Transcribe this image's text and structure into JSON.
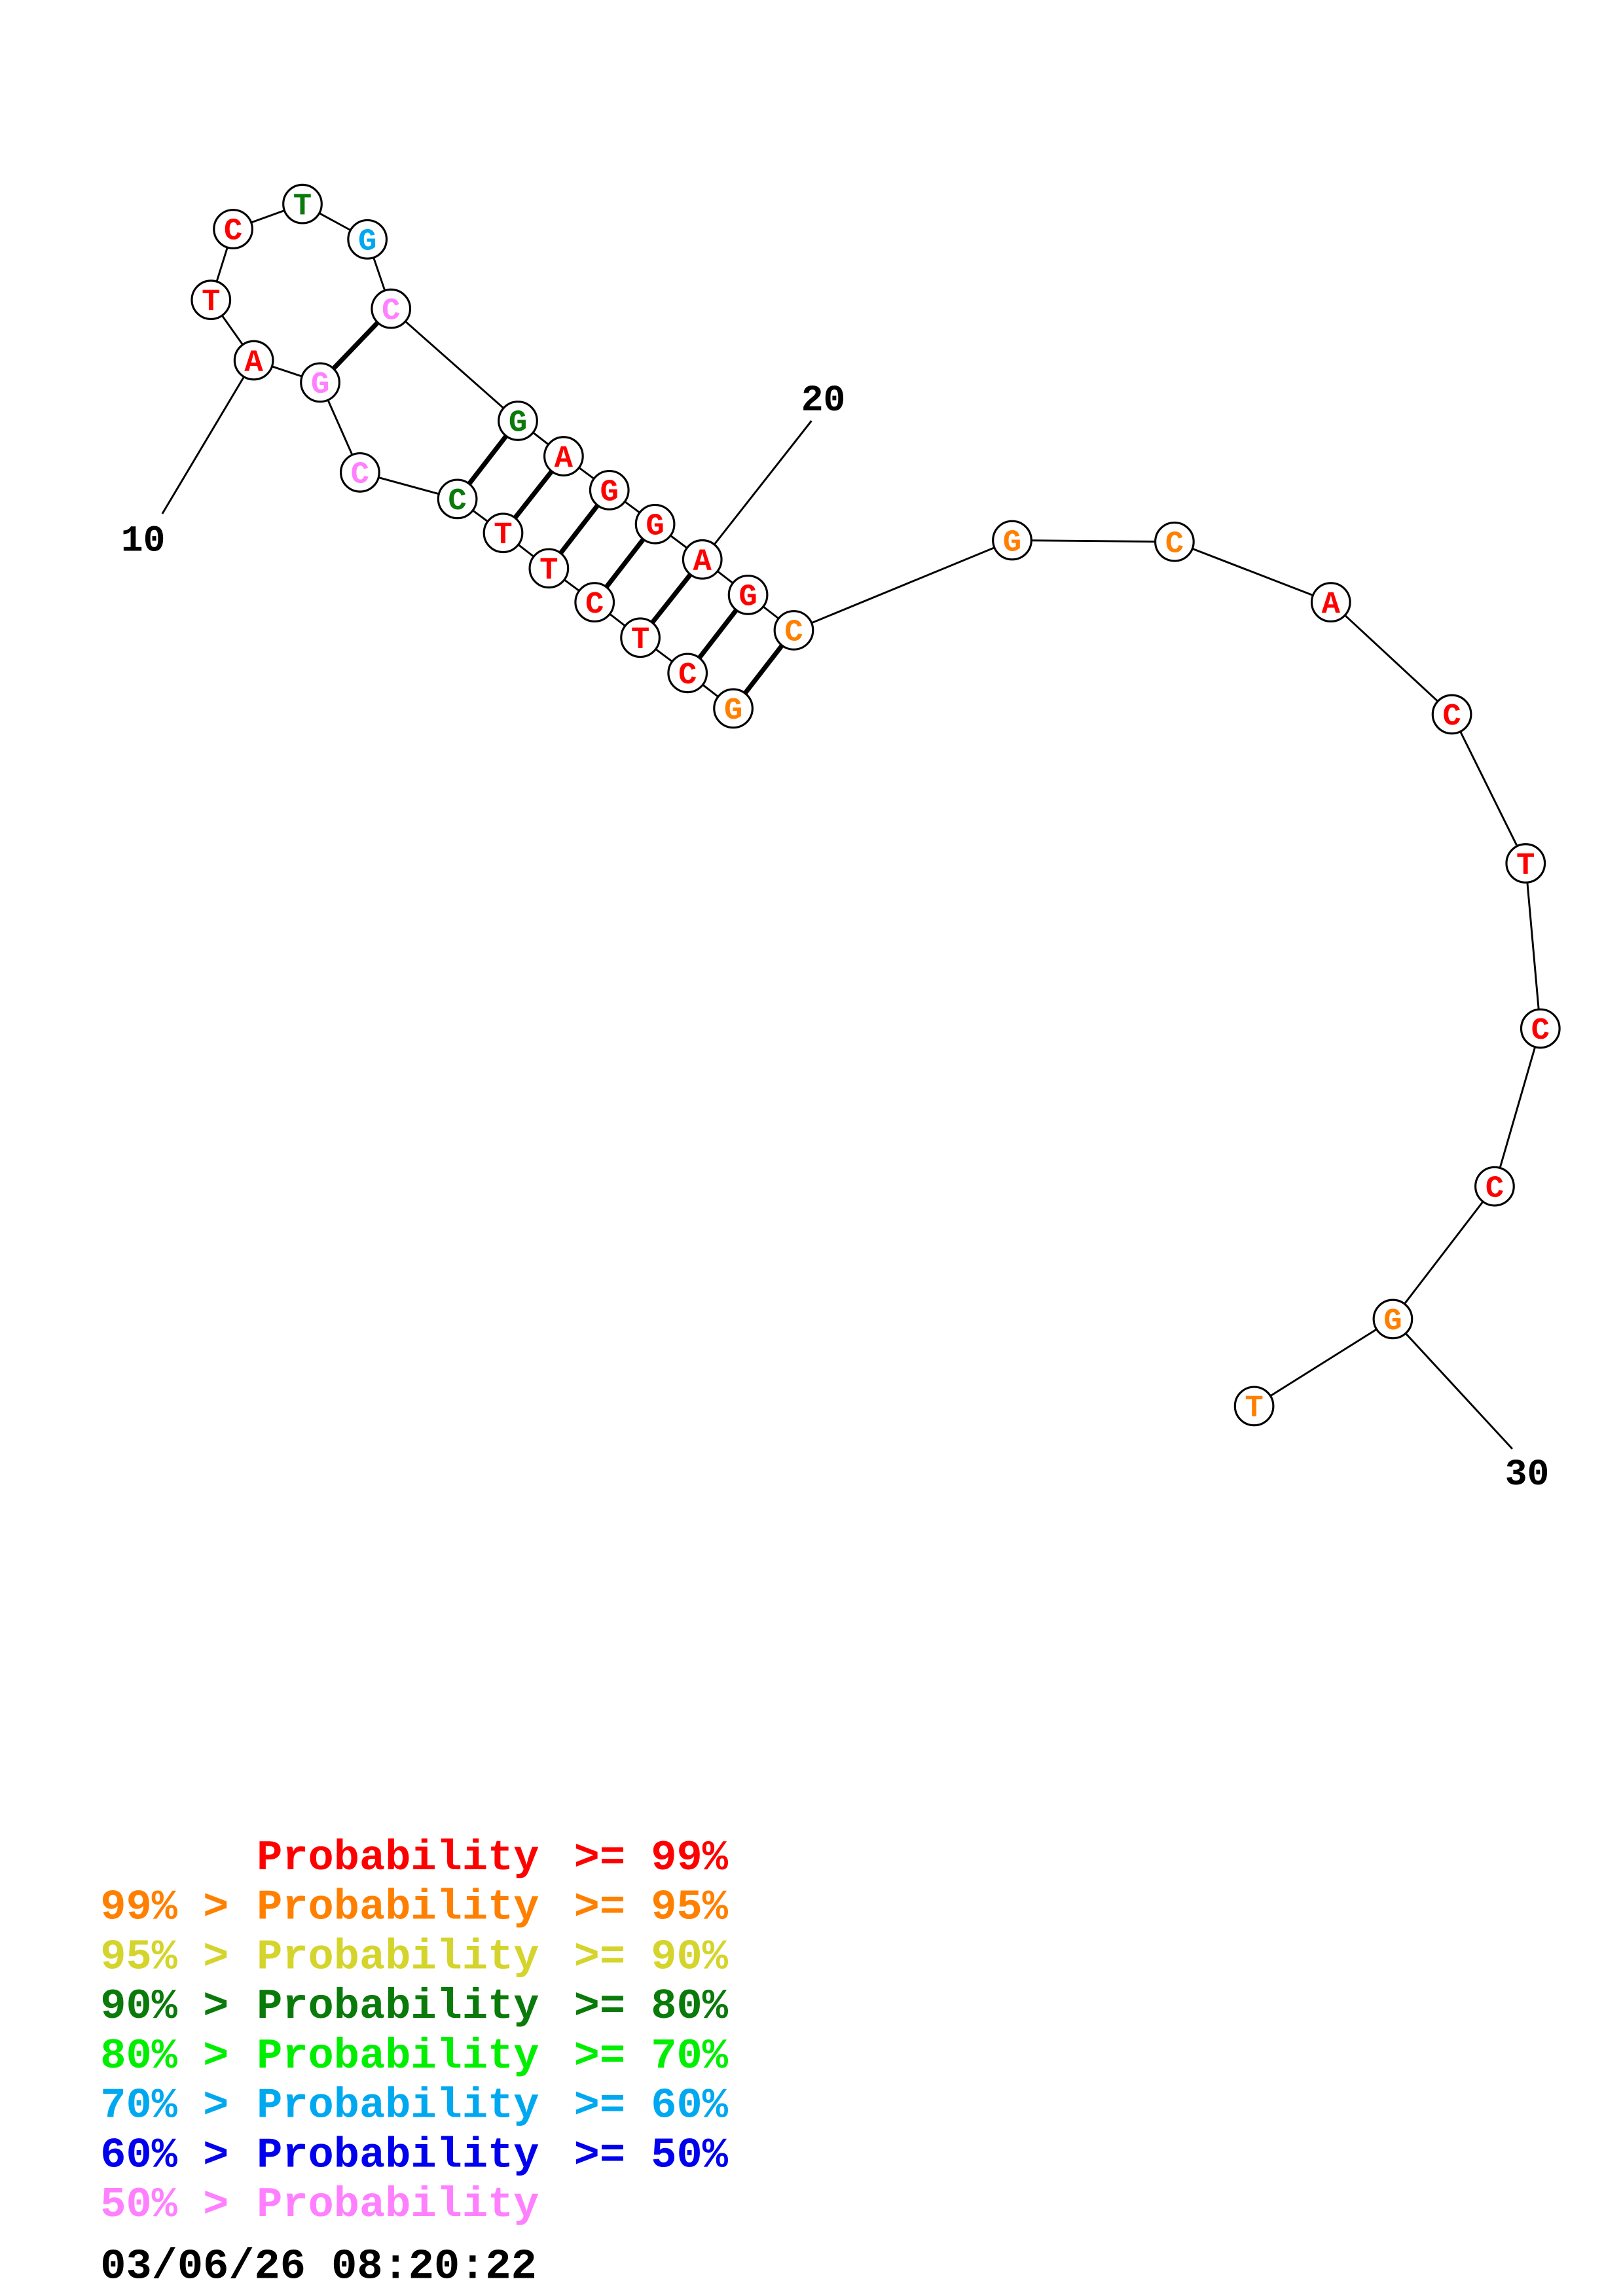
{
  "colors": {
    "p99": "#ff0000",
    "p95": "#ff8000",
    "p90": "#d4d42c",
    "p80": "#0a7a0a",
    "p70": "#00ee00",
    "p60": "#00a8f0",
    "p50": "#0000ee",
    "plow": "#ff80ff"
  },
  "structure": {
    "nucleotides": [
      {
        "n": 1,
        "base": "G",
        "prob": "p95"
      },
      {
        "n": 2,
        "base": "C",
        "prob": "p99"
      },
      {
        "n": 3,
        "base": "T",
        "prob": "p99"
      },
      {
        "n": 4,
        "base": "C",
        "prob": "p99"
      },
      {
        "n": 5,
        "base": "T",
        "prob": "p99"
      },
      {
        "n": 6,
        "base": "T",
        "prob": "p99"
      },
      {
        "n": 7,
        "base": "C",
        "prob": "p80"
      },
      {
        "n": 8,
        "base": "C",
        "prob": "plow"
      },
      {
        "n": 9,
        "base": "G",
        "prob": "plow"
      },
      {
        "n": 10,
        "base": "A",
        "prob": "p99"
      },
      {
        "n": 11,
        "base": "T",
        "prob": "p99"
      },
      {
        "n": 12,
        "base": "C",
        "prob": "p99"
      },
      {
        "n": 13,
        "base": "T",
        "prob": "p80"
      },
      {
        "n": 14,
        "base": "G",
        "prob": "p60"
      },
      {
        "n": 15,
        "base": "C",
        "prob": "plow"
      },
      {
        "n": 16,
        "base": "G",
        "prob": "p80"
      },
      {
        "n": 17,
        "base": "A",
        "prob": "p99"
      },
      {
        "n": 18,
        "base": "G",
        "prob": "p99"
      },
      {
        "n": 19,
        "base": "G",
        "prob": "p99"
      },
      {
        "n": 20,
        "base": "A",
        "prob": "p99"
      },
      {
        "n": 21,
        "base": "G",
        "prob": "p99"
      },
      {
        "n": 22,
        "base": "C",
        "prob": "p95"
      },
      {
        "n": 23,
        "base": "G",
        "prob": "p95"
      },
      {
        "n": 24,
        "base": "C",
        "prob": "p95"
      },
      {
        "n": 25,
        "base": "A",
        "prob": "p99"
      },
      {
        "n": 26,
        "base": "C",
        "prob": "p99"
      },
      {
        "n": 27,
        "base": "T",
        "prob": "p99"
      },
      {
        "n": 28,
        "base": "C",
        "prob": "p99"
      },
      {
        "n": 29,
        "base": "C",
        "prob": "p99"
      },
      {
        "n": 30,
        "base": "G",
        "prob": "p95"
      },
      {
        "n": 31,
        "base": "T",
        "prob": "p95"
      }
    ],
    "pairs": [
      [
        1,
        22
      ],
      [
        2,
        21
      ],
      [
        3,
        20
      ],
      [
        4,
        19
      ],
      [
        5,
        18
      ],
      [
        6,
        17
      ],
      [
        7,
        16
      ],
      [
        9,
        15
      ]
    ],
    "index_labels": {
      "l10": "10",
      "l20": "20",
      "l30": "30"
    }
  },
  "legend": {
    "rows": [
      {
        "prefix": "    ",
        "text": "Probability",
        "suffix": ">= 99%",
        "color_key": "p99"
      },
      {
        "prefix": "99% >",
        "text": "Probability",
        "suffix": ">= 95%",
        "color_key": "p95"
      },
      {
        "prefix": "95% >",
        "text": "Probability",
        "suffix": ">= 90%",
        "color_key": "p90"
      },
      {
        "prefix": "90% >",
        "text": "Probability",
        "suffix": ">= 80%",
        "color_key": "p80"
      },
      {
        "prefix": "80% >",
        "text": "Probability",
        "suffix": ">= 70%",
        "color_key": "p70"
      },
      {
        "prefix": "70% >",
        "text": "Probability",
        "suffix": ">= 60%",
        "color_key": "p60"
      },
      {
        "prefix": "60% >",
        "text": "Probability",
        "suffix": ">= 50%",
        "color_key": "p50"
      },
      {
        "prefix": "50% >",
        "text": "Probability",
        "suffix": "",
        "color_key": "plow"
      }
    ],
    "timestamp": "03/06/26 08:20:22"
  }
}
